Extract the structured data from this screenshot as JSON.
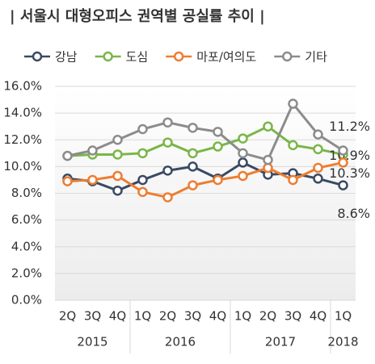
{
  "chart_data": {
    "type": "line",
    "title": "| 서울시 대형오피스 권역별 공실률 추이 |",
    "categories": [
      "2Q",
      "3Q",
      "4Q",
      "1Q",
      "2Q",
      "3Q",
      "4Q",
      "1Q",
      "2Q",
      "3Q",
      "4Q",
      "1Q"
    ],
    "x_groups": [
      {
        "label": "2015",
        "categories": 3
      },
      {
        "label": "2016",
        "categories": 4
      },
      {
        "label": "2017",
        "categories": 4
      },
      {
        "label": "2018",
        "categories": 1
      }
    ],
    "ylim": [
      0,
      16
    ],
    "yticks": [
      {
        "value": 0,
        "label": "0.0%"
      },
      {
        "value": 2,
        "label": "2.0%"
      },
      {
        "value": 4,
        "label": "4.0%"
      },
      {
        "value": 6,
        "label": "6.0%"
      },
      {
        "value": 8,
        "label": "8.0%"
      },
      {
        "value": 10,
        "label": "10.0%"
      },
      {
        "value": 12,
        "label": "12.0%"
      },
      {
        "value": 14,
        "label": "14.0%"
      },
      {
        "value": 16,
        "label": "16.0%"
      }
    ],
    "grid": true,
    "series": [
      {
        "name": "강남",
        "color": "#3b4a63",
        "values": [
          9.1,
          8.9,
          8.2,
          9.0,
          9.7,
          10.0,
          9.1,
          10.3,
          9.4,
          9.5,
          9.1,
          8.6
        ],
        "value_labels": [
          null,
          null,
          null,
          null,
          null,
          null,
          null,
          null,
          null,
          null,
          null,
          "8.6%"
        ]
      },
      {
        "name": "도심",
        "color": "#7ab648",
        "values": [
          10.8,
          10.9,
          10.9,
          11.0,
          11.8,
          11.0,
          11.5,
          12.1,
          13.0,
          11.6,
          11.3,
          10.9
        ],
        "value_labels": [
          null,
          null,
          null,
          null,
          null,
          null,
          null,
          null,
          null,
          null,
          null,
          "10.9%"
        ]
      },
      {
        "name": "마포/여의도",
        "color": "#ed7d31",
        "values": [
          8.9,
          9.0,
          9.3,
          8.1,
          7.7,
          8.6,
          9.0,
          9.3,
          9.9,
          9.0,
          9.9,
          10.3
        ],
        "value_labels": [
          null,
          null,
          null,
          null,
          null,
          null,
          null,
          null,
          null,
          null,
          null,
          "10.3%"
        ]
      },
      {
        "name": "기타",
        "color": "#8c8c8c",
        "values": [
          10.8,
          11.2,
          12.0,
          12.8,
          13.3,
          12.9,
          12.6,
          11.0,
          10.5,
          14.7,
          12.4,
          11.2
        ],
        "value_labels": [
          null,
          null,
          null,
          null,
          null,
          null,
          null,
          null,
          null,
          null,
          null,
          "11.2%"
        ]
      }
    ]
  }
}
